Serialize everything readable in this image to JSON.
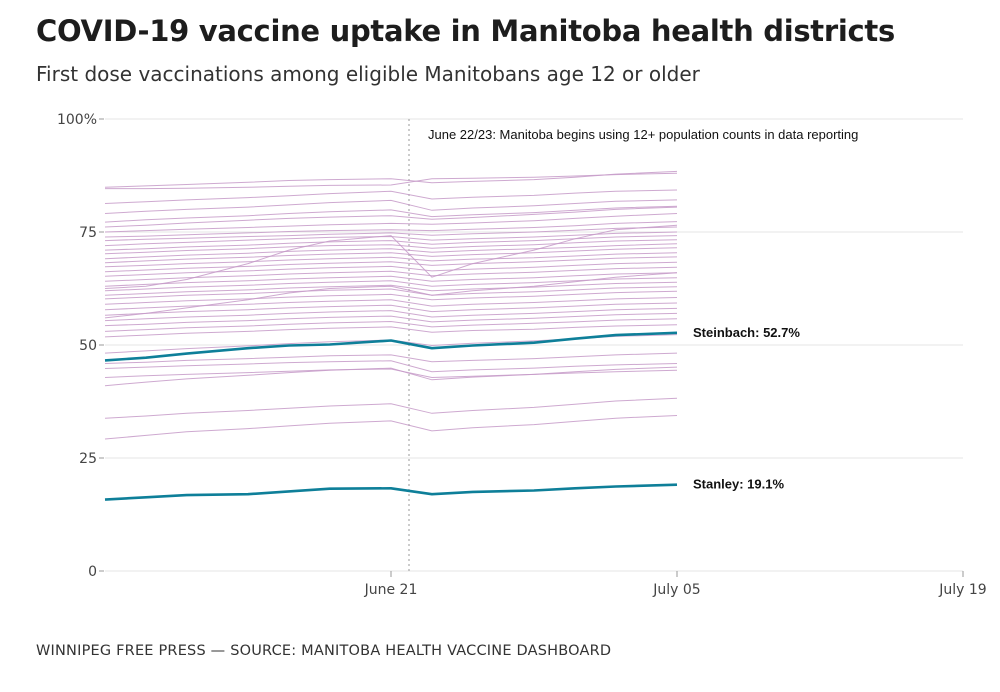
{
  "title": "COVID-19 vaccine uptake in Manitoba health districts",
  "subtitle": "First dose vaccinations among eligible Manitobans age 12 or older",
  "footer": "WINNIPEG FREE PRESS — SOURCE: MANITOBA HEALTH VACCINE DASHBOARD",
  "colors": {
    "highlight": "#0e7f99",
    "background_lines": "#c59ac8",
    "grid": "#e4e4e4",
    "axis": "#999999"
  },
  "chart_data": {
    "type": "line",
    "title": "COVID-19 vaccine uptake in Manitoba health districts",
    "subtitle": "First dose vaccinations among eligible Manitobans age 12 or older",
    "x_dates": [
      "2021-06-07",
      "2021-06-09",
      "2021-06-11",
      "2021-06-14",
      "2021-06-16",
      "2021-06-18",
      "2021-06-21",
      "2021-06-23",
      "2021-06-25",
      "2021-06-28",
      "2021-06-30",
      "2021-07-02",
      "2021-07-05"
    ],
    "x_domain": [
      "2021-06-07",
      "2021-07-19"
    ],
    "x_ticks": [
      {
        "date": "2021-06-21",
        "label": "June 21"
      },
      {
        "date": "2021-07-05",
        "label": "July 05"
      },
      {
        "date": "2021-07-19",
        "label": "July 19"
      }
    ],
    "ylim": [
      0,
      100
    ],
    "y_ticks": [
      {
        "value": 0,
        "label": "0"
      },
      {
        "value": 25,
        "label": "25"
      },
      {
        "value": 50,
        "label": "50"
      },
      {
        "value": 75,
        "label": "75"
      },
      {
        "value": 100,
        "label": "100%"
      }
    ],
    "grid": true,
    "reference_line": {
      "date": "2021-06-21",
      "style": "dotted"
    },
    "annotation": "June 22/23: Manitoba begins using 12+ population counts in data reporting",
    "highlight_series": [
      {
        "name": "Steinbach",
        "label": "Steinbach: 52.7%",
        "values": [
          46.6,
          47.2,
          48.1,
          49.3,
          49.9,
          50.1,
          51.0,
          49.3,
          49.9,
          50.5,
          51.4,
          52.2,
          52.7
        ]
      },
      {
        "name": "Stanley",
        "label": "Stanley: 19.1%",
        "values": [
          15.8,
          16.3,
          16.8,
          17.0,
          17.6,
          18.2,
          18.3,
          17.0,
          17.5,
          17.8,
          18.3,
          18.7,
          19.1
        ]
      }
    ],
    "background_series": [
      [
        84.6,
        84.6,
        84.7,
        84.9,
        85.1,
        85.3,
        85.4,
        86.8,
        86.9,
        87.1,
        87.4,
        87.7,
        88.0
      ],
      [
        84.9,
        85.2,
        85.5,
        86.0,
        86.4,
        86.6,
        86.8,
        85.9,
        86.2,
        86.6,
        87.1,
        87.8,
        88.4
      ],
      [
        81.3,
        81.7,
        82.1,
        82.6,
        83.0,
        83.5,
        84.0,
        82.3,
        82.7,
        83.1,
        83.6,
        84.0,
        84.3
      ],
      [
        79.1,
        79.6,
        80.0,
        80.5,
        81.0,
        81.5,
        82.0,
        79.8,
        80.3,
        80.8,
        81.3,
        81.8,
        82.1
      ],
      [
        77.2,
        77.7,
        78.1,
        78.6,
        79.1,
        79.5,
        79.9,
        78.4,
        78.8,
        79.3,
        79.8,
        80.3,
        80.7
      ],
      [
        76.1,
        76.5,
        77.0,
        77.6,
        78.0,
        78.3,
        78.6,
        77.8,
        78.2,
        78.9,
        79.4,
        80.0,
        80.5
      ],
      [
        75.0,
        75.3,
        75.6,
        76.0,
        76.3,
        76.6,
        76.9,
        76.7,
        77.0,
        77.5,
        78.0,
        78.5,
        79.1
      ],
      [
        73.9,
        74.1,
        74.4,
        74.8,
        75.1,
        75.3,
        75.5,
        75.3,
        75.6,
        76.0,
        76.4,
        76.9,
        77.3
      ],
      [
        73.1,
        73.4,
        73.6,
        74.0,
        74.2,
        74.5,
        74.8,
        74.3,
        74.6,
        75.0,
        75.4,
        75.8,
        76.1
      ],
      [
        72.0,
        72.4,
        72.7,
        73.2,
        73.5,
        73.8,
        74.0,
        73.2,
        73.5,
        73.9,
        74.3,
        74.7,
        75.0
      ],
      [
        71.0,
        71.3,
        71.7,
        72.1,
        72.5,
        72.8,
        73.1,
        72.3,
        72.7,
        73.1,
        73.5,
        73.9,
        74.2
      ],
      [
        70.2,
        70.5,
        70.9,
        71.3,
        71.7,
        72.0,
        72.2,
        71.4,
        71.8,
        72.2,
        72.6,
        73.0,
        73.3
      ],
      [
        69.1,
        69.5,
        69.9,
        70.3,
        70.7,
        71.0,
        71.3,
        70.5,
        70.9,
        71.3,
        71.6,
        72.0,
        72.4
      ],
      [
        68.2,
        68.6,
        69.0,
        69.4,
        69.8,
        70.1,
        70.4,
        69.6,
        70.0,
        70.4,
        70.8,
        71.2,
        71.5
      ],
      [
        67.3,
        67.6,
        68.0,
        68.4,
        68.8,
        69.1,
        69.4,
        68.6,
        69.0,
        69.3,
        69.7,
        70.1,
        70.4
      ],
      [
        66.2,
        66.6,
        67.0,
        67.4,
        67.8,
        68.1,
        68.4,
        67.6,
        68.0,
        68.4,
        68.8,
        69.2,
        69.5
      ],
      [
        65.2,
        65.6,
        66.0,
        66.4,
        66.8,
        67.1,
        67.4,
        66.4,
        66.8,
        67.2,
        67.6,
        68.0,
        68.3
      ],
      [
        64.1,
        64.5,
        64.9,
        65.3,
        65.7,
        66.0,
        66.3,
        65.3,
        65.7,
        66.1,
        66.5,
        66.9,
        67.2
      ],
      [
        63.0,
        63.4,
        63.8,
        64.2,
        64.6,
        64.9,
        65.2,
        64.1,
        64.5,
        64.9,
        65.3,
        65.7,
        66.0
      ],
      [
        62.0,
        62.4,
        62.8,
        63.2,
        63.6,
        63.9,
        64.2,
        63.0,
        63.4,
        63.8,
        64.2,
        64.6,
        64.9
      ],
      [
        61.0,
        61.4,
        61.8,
        62.2,
        62.6,
        62.9,
        63.2,
        62.0,
        62.4,
        62.8,
        63.2,
        63.6,
        63.9
      ],
      [
        60.2,
        60.6,
        61.0,
        61.4,
        61.8,
        62.1,
        62.4,
        61.0,
        61.4,
        61.8,
        62.2,
        62.6,
        62.9
      ],
      [
        59.0,
        59.4,
        59.8,
        60.2,
        60.6,
        60.9,
        61.2,
        60.0,
        60.4,
        60.8,
        61.2,
        61.6,
        61.9
      ],
      [
        57.8,
        58.2,
        58.6,
        59.0,
        59.4,
        59.7,
        60.0,
        58.6,
        59.0,
        59.4,
        59.8,
        60.2,
        60.5
      ],
      [
        56.6,
        57.0,
        57.4,
        57.8,
        58.2,
        58.5,
        58.8,
        57.4,
        57.8,
        58.2,
        58.6,
        59.0,
        59.3
      ],
      [
        55.4,
        55.8,
        56.2,
        56.6,
        57.0,
        57.3,
        57.6,
        56.2,
        56.6,
        57.0,
        57.4,
        57.8,
        58.1
      ],
      [
        54.3,
        54.6,
        55.0,
        55.4,
        55.8,
        56.1,
        56.4,
        55.1,
        55.5,
        55.9,
        56.3,
        56.7,
        57.0
      ],
      [
        53.0,
        53.4,
        53.8,
        54.2,
        54.6,
        54.9,
        55.2,
        54.0,
        54.4,
        54.8,
        55.1,
        55.5,
        55.8
      ],
      [
        51.8,
        52.2,
        52.6,
        53.0,
        53.4,
        53.7,
        54.0,
        52.8,
        53.2,
        53.5,
        53.9,
        54.2,
        54.5
      ],
      [
        48.2,
        48.7,
        49.2,
        49.8,
        50.3,
        50.7,
        51.1,
        49.9,
        50.4,
        50.9,
        51.4,
        51.9,
        52.3
      ],
      [
        45.9,
        46.2,
        46.6,
        47.0,
        47.3,
        47.6,
        47.8,
        46.3,
        46.6,
        47.0,
        47.4,
        47.8,
        48.2
      ],
      [
        44.8,
        45.1,
        45.4,
        45.8,
        46.1,
        46.3,
        46.5,
        44.1,
        44.5,
        44.9,
        45.3,
        45.6,
        45.9
      ],
      [
        41.0,
        41.8,
        42.5,
        43.3,
        43.9,
        44.4,
        44.9,
        42.3,
        42.9,
        43.5,
        44.1,
        44.6,
        45.1
      ],
      [
        42.8,
        43.2,
        43.5,
        43.9,
        44.2,
        44.5,
        44.7,
        42.8,
        43.1,
        43.5,
        43.8,
        44.1,
        44.4
      ],
      [
        33.8,
        34.3,
        34.9,
        35.5,
        36.0,
        36.5,
        37.0,
        34.9,
        35.5,
        36.2,
        36.9,
        37.6,
        38.2
      ],
      [
        29.2,
        30.0,
        30.8,
        31.5,
        32.1,
        32.7,
        33.2,
        31.0,
        31.7,
        32.4,
        33.1,
        33.8,
        34.4
      ],
      [
        62.5,
        63.0,
        64.5,
        68.0,
        71.0,
        73.0,
        74.2,
        65.0,
        68.0,
        71.0,
        73.5,
        75.5,
        76.5
      ],
      [
        56.0,
        57.0,
        58.2,
        60.0,
        61.5,
        62.5,
        63.0,
        61.0,
        62.0,
        63.0,
        64.0,
        65.0,
        66.0
      ]
    ]
  }
}
